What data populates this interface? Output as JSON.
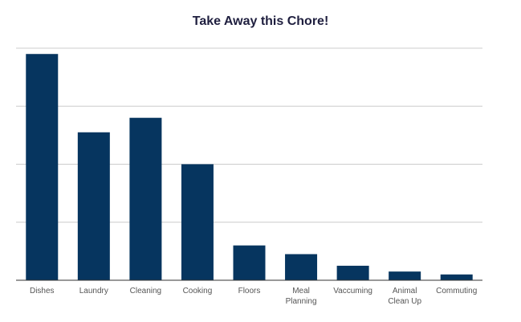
{
  "chart_data": {
    "type": "bar",
    "title": "Take Away this Chore!",
    "xlabel": "",
    "ylabel": "",
    "categories": [
      [
        "Dishes"
      ],
      [
        "Laundry"
      ],
      [
        "Cleaning"
      ],
      [
        "Cooking"
      ],
      [
        "Floors"
      ],
      [
        "Meal",
        "Planning"
      ],
      [
        "Vaccuming"
      ],
      [
        "Animal",
        "Clean Up"
      ],
      [
        "Commuting"
      ]
    ],
    "values": [
      39,
      25.5,
      28,
      20,
      6,
      4.5,
      2.5,
      1.5,
      1
    ],
    "ylim": [
      0,
      40
    ],
    "y_gridlines": [
      0,
      10,
      20,
      30,
      40
    ],
    "y_tick_labels_visible": false,
    "grid": true,
    "colors": {
      "bar": "#06355f",
      "grid": "#cccccc",
      "axis": "#333333",
      "title": "#1f1f3f",
      "tick_label": "#555555"
    }
  }
}
